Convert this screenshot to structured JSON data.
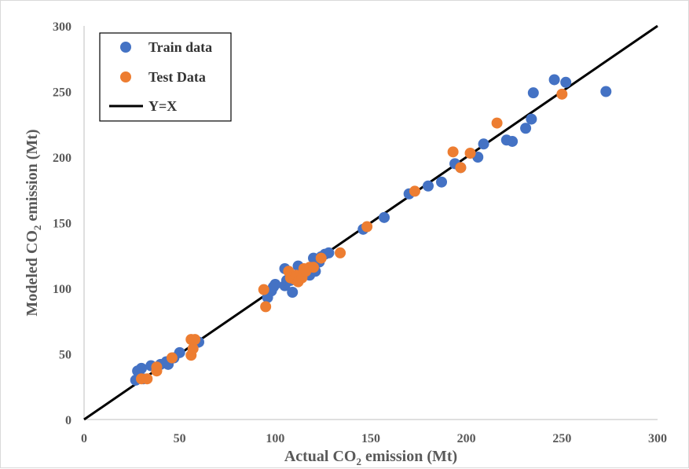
{
  "chart_data": {
    "type": "scatter",
    "title": "",
    "xlabel": {
      "pre": "Actual CO",
      "sub": "2",
      "post": " emission (Mt)"
    },
    "ylabel": {
      "pre": "Modeled CO",
      "sub": "2",
      "post": " emission (Mt)"
    },
    "xlim": [
      0,
      300
    ],
    "ylim": [
      0,
      300
    ],
    "x_ticks": [
      "0",
      "50",
      "100",
      "150",
      "200",
      "250",
      "300"
    ],
    "y_ticks": [
      "0",
      "50",
      "100",
      "150",
      "200",
      "250",
      "300"
    ],
    "grid": false,
    "legend_position": "top-left",
    "series": [
      {
        "name": "Train data",
        "color": "#4472C4",
        "points": [
          [
            27,
            30
          ],
          [
            28,
            37
          ],
          [
            30,
            39
          ],
          [
            31,
            31
          ],
          [
            35,
            41
          ],
          [
            38,
            40
          ],
          [
            40,
            42
          ],
          [
            43,
            44
          ],
          [
            44,
            42
          ],
          [
            47,
            47
          ],
          [
            50,
            51
          ],
          [
            60,
            59
          ],
          [
            96,
            93
          ],
          [
            98,
            98
          ],
          [
            99,
            101
          ],
          [
            100,
            103
          ],
          [
            105,
            102
          ],
          [
            105,
            115
          ],
          [
            106,
            106
          ],
          [
            108,
            106
          ],
          [
            109,
            97
          ],
          [
            110,
            108
          ],
          [
            112,
            117
          ],
          [
            113,
            110
          ],
          [
            115,
            113
          ],
          [
            117,
            111
          ],
          [
            118,
            110
          ],
          [
            119,
            115
          ],
          [
            120,
            123
          ],
          [
            121,
            113
          ],
          [
            123,
            120
          ],
          [
            124,
            124
          ],
          [
            126,
            126
          ],
          [
            128,
            127
          ],
          [
            146,
            145
          ],
          [
            157,
            154
          ],
          [
            170,
            172
          ],
          [
            180,
            178
          ],
          [
            187,
            181
          ],
          [
            194,
            195
          ],
          [
            197,
            192
          ],
          [
            206,
            200
          ],
          [
            209,
            210
          ],
          [
            221,
            213
          ],
          [
            224,
            212
          ],
          [
            231,
            222
          ],
          [
            234,
            229
          ],
          [
            235,
            249
          ],
          [
            246,
            259
          ],
          [
            252,
            257
          ],
          [
            273,
            250
          ]
        ]
      },
      {
        "name": "Test Data",
        "color": "#ED7D31",
        "points": [
          [
            30,
            31
          ],
          [
            33,
            31
          ],
          [
            38,
            37
          ],
          [
            38,
            40
          ],
          [
            46,
            47
          ],
          [
            56,
            49
          ],
          [
            56,
            61
          ],
          [
            57,
            54
          ],
          [
            58,
            61
          ],
          [
            94,
            99
          ],
          [
            95,
            86
          ],
          [
            107,
            113
          ],
          [
            108,
            108
          ],
          [
            110,
            107
          ],
          [
            111,
            110
          ],
          [
            112,
            105
          ],
          [
            114,
            108
          ],
          [
            115,
            115
          ],
          [
            116,
            113
          ],
          [
            118,
            116
          ],
          [
            120,
            116
          ],
          [
            124,
            123
          ],
          [
            134,
            127
          ],
          [
            148,
            147
          ],
          [
            173,
            174
          ],
          [
            193,
            204
          ],
          [
            197,
            192
          ],
          [
            202,
            203
          ],
          [
            216,
            226
          ],
          [
            250,
            248
          ]
        ]
      }
    ],
    "reference_line": {
      "name": "Y=X",
      "color": "#000000",
      "from": [
        0,
        0
      ],
      "to": [
        300,
        300
      ]
    }
  }
}
